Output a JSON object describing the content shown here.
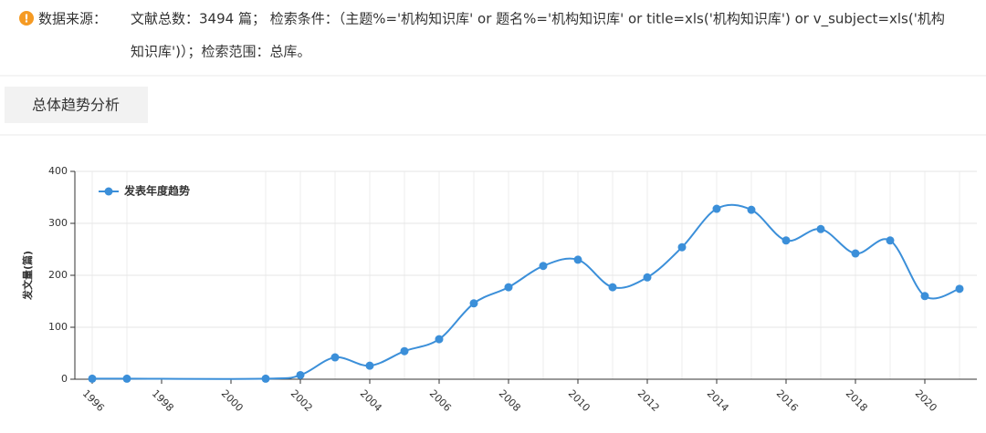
{
  "header": {
    "label": "数据来源：",
    "lines": [
      "文献总数：3494 篇；  检索条件：（主题%='机构知识库' or 题名%='机构知识库' or title=xls('机构知识库') or v_subject=xls('机构",
      "知识库')）；检索范围：总库。"
    ]
  },
  "tab": {
    "label": "总体趋势分析"
  },
  "chart_data": {
    "type": "line",
    "ylabel": "发文量(篇)",
    "x": [
      1996,
      1997,
      2001,
      2002,
      2003,
      2004,
      2005,
      2006,
      2007,
      2008,
      2009,
      2010,
      2011,
      2012,
      2013,
      2014,
      2015,
      2016,
      2017,
      2018,
      2019,
      2020,
      2021
    ],
    "series": [
      {
        "name": "发表年度趋势",
        "color": "#3b8fd9",
        "values": [
          1,
          1,
          1,
          8,
          42,
          26,
          54,
          77,
          146,
          177,
          218,
          230,
          177,
          196,
          254,
          328,
          326,
          267,
          289,
          242,
          267,
          160,
          174
        ]
      }
    ],
    "xlim": [
      1995.5,
      2021.5
    ],
    "xticks": [
      1996,
      1998,
      2000,
      2002,
      2004,
      2006,
      2008,
      2010,
      2012,
      2014,
      2016,
      2018,
      2020
    ],
    "ylim": [
      0,
      400
    ],
    "yticks": [
      0,
      100,
      200,
      300,
      400
    ],
    "grid": true,
    "legend": "top-left"
  }
}
